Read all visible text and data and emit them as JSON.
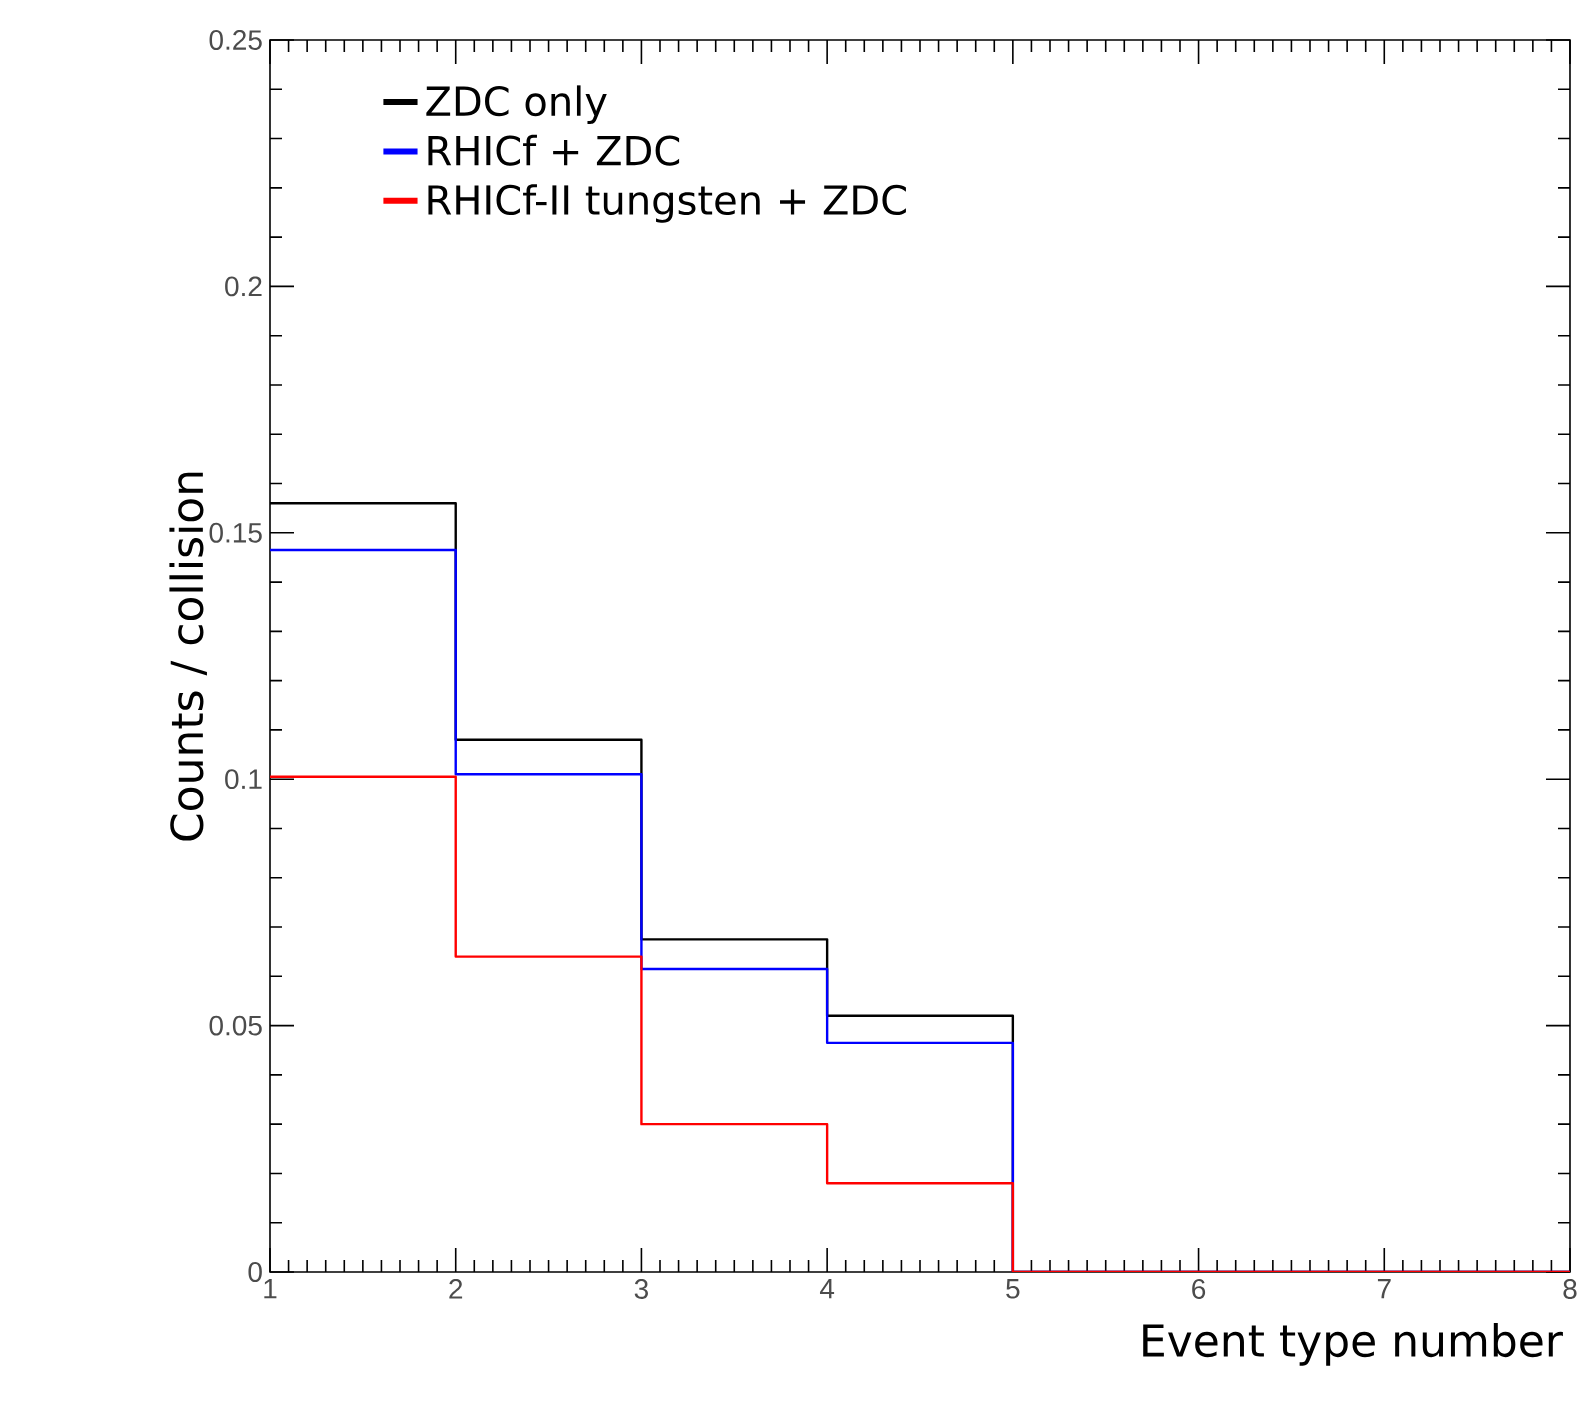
{
  "chart_data": {
    "type": "histogram",
    "xlabel": "Event type number",
    "ylabel": "Counts / collision",
    "bins": [
      1,
      2,
      3,
      4,
      5,
      6,
      7,
      8
    ],
    "series": [
      {
        "name": "ZDC only",
        "color": "#000000",
        "values": [
          0.156,
          0.108,
          0.0675,
          0.052,
          0,
          0,
          0
        ]
      },
      {
        "name": "RHICf + ZDC",
        "color": "#0000ff",
        "values": [
          0.1465,
          0.101,
          0.0615,
          0.0465,
          0,
          0,
          0
        ]
      },
      {
        "name": "RHICf-II tungsten + ZDC",
        "color": "#ff0000",
        "values": [
          0.1005,
          0.064,
          0.03,
          0.018,
          0,
          0,
          0
        ]
      }
    ],
    "xlim": [
      1,
      8
    ],
    "ylim": [
      0,
      0.25
    ],
    "xticks": [
      1,
      2,
      3,
      4,
      5,
      6,
      7,
      8
    ],
    "yticks": [
      0,
      0.05,
      0.1,
      0.15,
      0.2,
      0.25
    ],
    "legend": "top left",
    "grid": false
  }
}
